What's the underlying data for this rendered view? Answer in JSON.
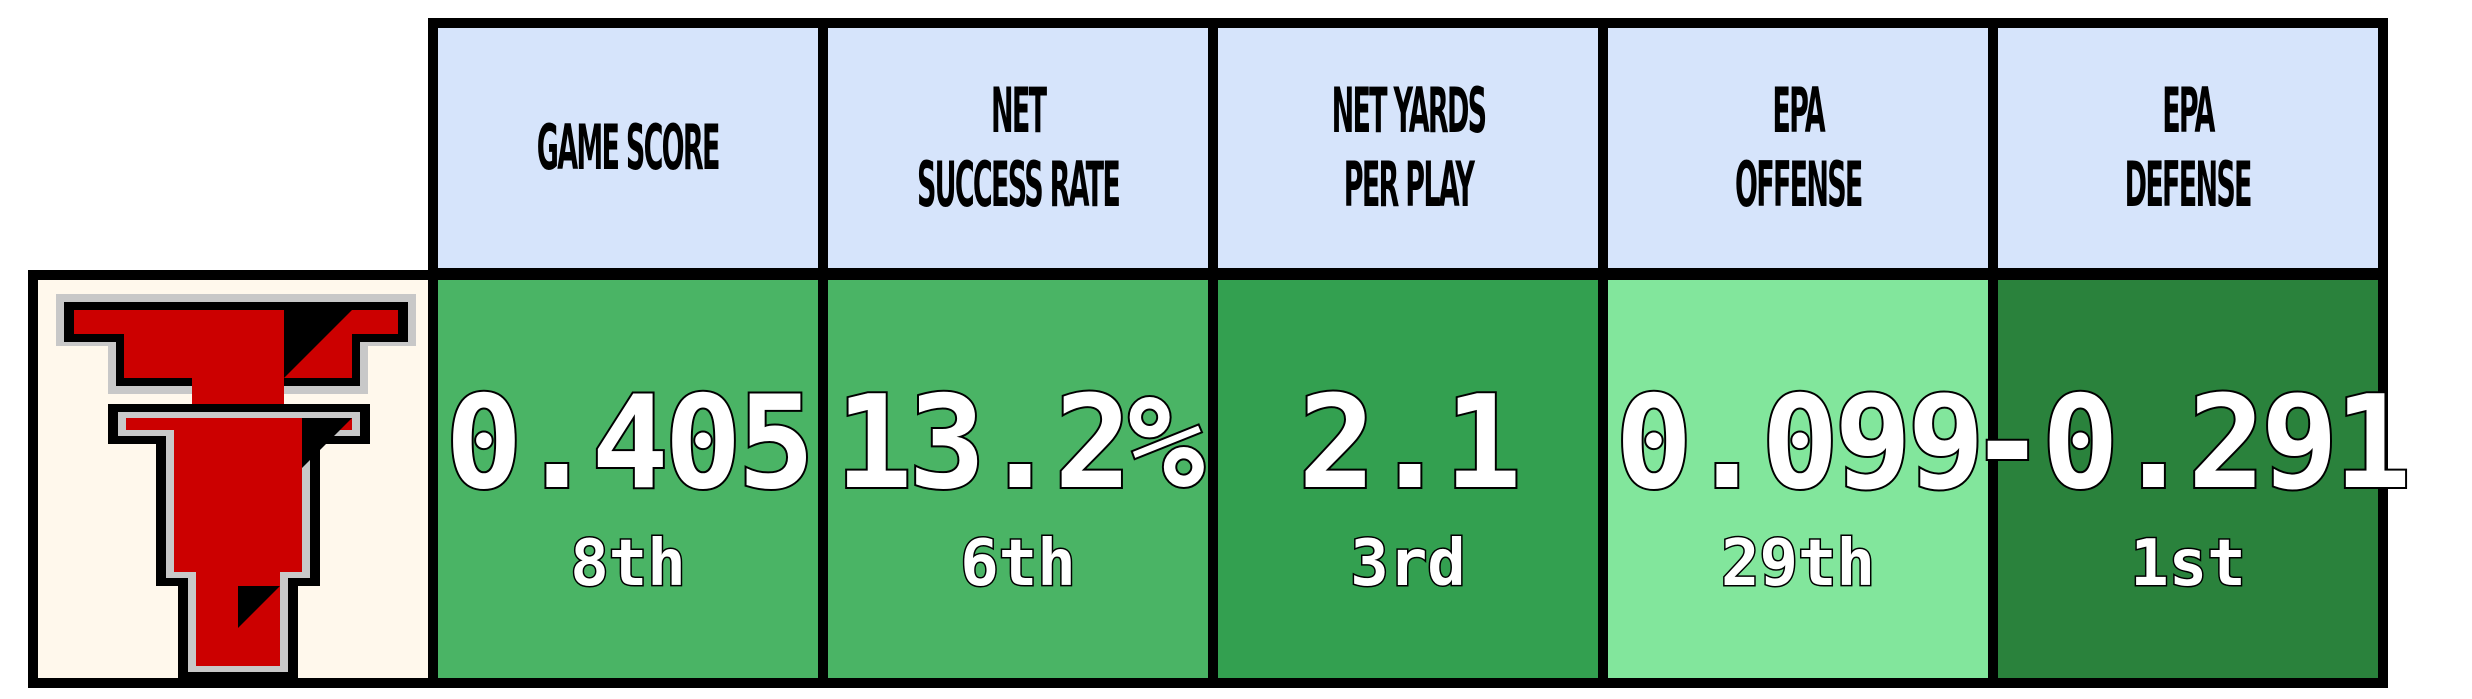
{
  "team_logo": {
    "name": "Texas Tech Double T"
  },
  "colors": {
    "header_bg": "#d6e4fb",
    "border": "#000000",
    "logo_bg": "#fff8ec",
    "logo_red": "#cc0000",
    "logo_black": "#000000",
    "logo_silver": "#c8c8c8"
  },
  "metrics": [
    {
      "header": "GAME SCORE",
      "header_lines": [
        "GAME SCORE"
      ],
      "value": "0.405",
      "rank": "8th",
      "color": "#4ab465"
    },
    {
      "header": "NET SUCCESS RATE",
      "header_lines": [
        "NET",
        "SUCCESS RATE"
      ],
      "value": "13.2%",
      "rank": "6th",
      "color": "#4ab465"
    },
    {
      "header": "NET YARDS PER PLAY",
      "header_lines": [
        "NET YARDS",
        "PER PLAY"
      ],
      "value": "2.1",
      "rank": "3rd",
      "color": "#33a050"
    },
    {
      "header": "EPA OFFENSE",
      "header_lines": [
        "EPA",
        "OFFENSE"
      ],
      "value": "0.099",
      "rank": "29th",
      "color": "#82e69c"
    },
    {
      "header": "EPA DEFENSE",
      "header_lines": [
        "EPA",
        "DEFENSE"
      ],
      "value": "-0.291",
      "rank": "1st",
      "color": "#2a823c"
    }
  ]
}
